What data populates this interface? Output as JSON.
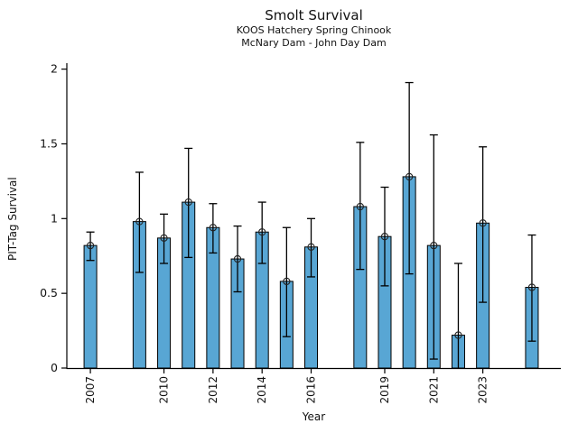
{
  "colors": {
    "background": "#ffffff",
    "bar_fill": "#58a6d4",
    "bar_edge": "#000000",
    "errorbar": "#000000",
    "marker_edge": "#222222",
    "axis": "#000000",
    "text": "#111111"
  },
  "chart_data": {
    "type": "bar",
    "title": "Smolt Survival",
    "subtitle1": "KOOS Hatchery Spring Chinook",
    "subtitle2": "McNary Dam - John Day Dam",
    "xlabel": "Year",
    "ylabel": "PIT-Tag Survival",
    "ylim": [
      0,
      2.04
    ],
    "xlim": [
      2006.04,
      2026.18
    ],
    "yticks": [
      0,
      0.5,
      1,
      1.5,
      2
    ],
    "ytick_labels": [
      "0",
      "0.5",
      "1",
      "1.5",
      "2"
    ],
    "xticks": [
      2007,
      2010,
      2012,
      2014,
      2016,
      2019,
      2021,
      2023
    ],
    "legend": "none",
    "grid": false,
    "marker": "open-circle",
    "points": [
      {
        "year": 2007,
        "survival": 0.82,
        "ci_low": 0.72,
        "ci_high": 0.91
      },
      {
        "year": 2009,
        "survival": 0.98,
        "ci_low": 0.64,
        "ci_high": 1.31
      },
      {
        "year": 2010,
        "survival": 0.87,
        "ci_low": 0.7,
        "ci_high": 1.03
      },
      {
        "year": 2011,
        "survival": 1.11,
        "ci_low": 0.74,
        "ci_high": 1.47
      },
      {
        "year": 2012,
        "survival": 0.94,
        "ci_low": 0.77,
        "ci_high": 1.1
      },
      {
        "year": 2013,
        "survival": 0.73,
        "ci_low": 0.51,
        "ci_high": 0.95
      },
      {
        "year": 2014,
        "survival": 0.91,
        "ci_low": 0.7,
        "ci_high": 1.11
      },
      {
        "year": 2015,
        "survival": 0.58,
        "ci_low": 0.21,
        "ci_high": 0.94
      },
      {
        "year": 2016,
        "survival": 0.81,
        "ci_low": 0.61,
        "ci_high": 1.0
      },
      {
        "year": 2018,
        "survival": 1.08,
        "ci_low": 0.66,
        "ci_high": 1.51
      },
      {
        "year": 2019,
        "survival": 0.88,
        "ci_low": 0.55,
        "ci_high": 1.21
      },
      {
        "year": 2020,
        "survival": 1.28,
        "ci_low": 0.63,
        "ci_high": 1.91
      },
      {
        "year": 2021,
        "survival": 0.82,
        "ci_low": 0.06,
        "ci_high": 1.56
      },
      {
        "year": 2022,
        "survival": 0.22,
        "ci_low": 0.0,
        "ci_high": 0.7
      },
      {
        "year": 2023,
        "survival": 0.97,
        "ci_low": 0.44,
        "ci_high": 1.48
      },
      {
        "year": 2025,
        "survival": 0.54,
        "ci_low": 0.18,
        "ci_high": 0.89
      }
    ]
  }
}
